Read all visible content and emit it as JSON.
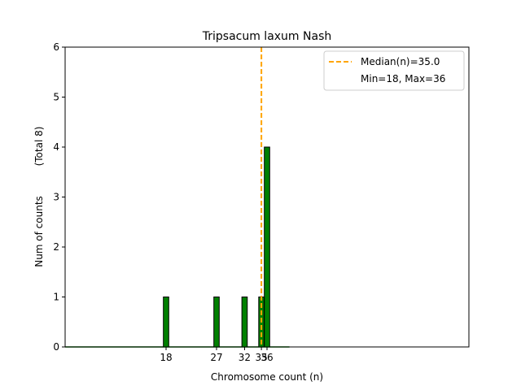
{
  "chart_data": {
    "type": "bar",
    "title": "Tripsacum laxum Nash",
    "xlabel": "Chromosome count (n)",
    "ylabel": "Num of counts",
    "ylabel_total": "(Total 8)",
    "xlim": [
      0,
      72
    ],
    "ylim": [
      0,
      6
    ],
    "yticks": [
      0,
      1,
      2,
      3,
      4,
      5,
      6
    ],
    "xticks": [
      18,
      27,
      32,
      35,
      36
    ],
    "bars": [
      {
        "x": 18,
        "count": 1
      },
      {
        "x": 27,
        "count": 1
      },
      {
        "x": 32,
        "count": 1
      },
      {
        "x": 35,
        "count": 1
      },
      {
        "x": 36,
        "count": 4
      }
    ],
    "median": 35.0,
    "legend": {
      "position": "top-right",
      "median_label": "Median(n)=35.0",
      "range_label": "Min=18, Max=36"
    },
    "colors": {
      "bar_fill": "#008000",
      "bar_edge": "#000000",
      "median_line": "#FFA500",
      "baseline": "#008000"
    }
  }
}
